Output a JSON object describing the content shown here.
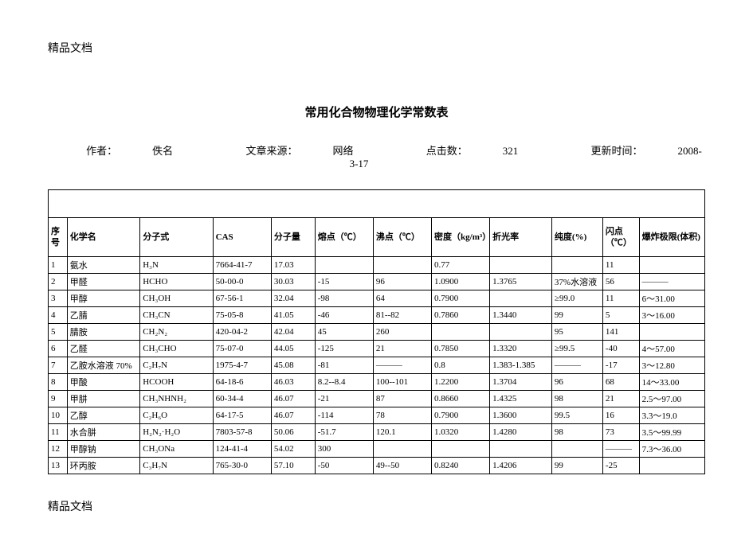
{
  "header_label": "精品文档",
  "footer_label": "精品文档",
  "title": "常用化合物物理化学常数表",
  "meta": {
    "author_label": "作者：",
    "author": "佚名",
    "source_label": "文章来源：",
    "source": "网络",
    "hits_label": "点击数：",
    "hits": "321",
    "updated_label": "更新时间：",
    "updated": "2008-3-17"
  },
  "columns": [
    "序号",
    "化学名",
    "分子式",
    "CAS",
    "分子量",
    "熔点（℃）",
    "沸点（℃）",
    "密度（kg/m³）",
    "折光率",
    "纯度(%)",
    "闪点（℃）",
    "爆炸极限(体积)"
  ],
  "rows": [
    [
      "1",
      "氨水",
      "H₃N",
      "7664-41-7",
      "17.03",
      "",
      "",
      "0.77",
      "",
      "",
      "11",
      ""
    ],
    [
      "2",
      "甲醛",
      "HCHO",
      "50-00-0",
      "30.03",
      "-15",
      "96",
      "1.0900",
      "1.3765",
      "37%水溶液",
      "56",
      "———"
    ],
    [
      "3",
      "甲醇",
      "CH₃OH",
      "67-56-1",
      "32.04",
      "-98",
      "64",
      "0.7900",
      "",
      "≥99.0",
      "11",
      "6～31.00"
    ],
    [
      "4",
      "乙腈",
      "CH₃CN",
      "75-05-8",
      "41.05",
      "-46",
      "81--82",
      "0.7860",
      "1.3440",
      "99",
      "5",
      "3～16.00"
    ],
    [
      "5",
      "腈胺",
      "CH₂N₂",
      "420-04-2",
      "42.04",
      "45",
      "260",
      "",
      "",
      "95",
      "141",
      ""
    ],
    [
      "6",
      "乙醛",
      "CH₃CHO",
      "75-07-0",
      "44.05",
      "-125",
      "21",
      "0.7850",
      "1.3320",
      "≥99.5",
      "-40",
      "4～57.00"
    ],
    [
      "7",
      "乙胺水溶液 70%",
      "C₂H₇N",
      "1975-4-7",
      "45.08",
      "-81",
      "———",
      "0.8",
      "1.383-1.385",
      "———",
      "-17",
      "3～12.80"
    ],
    [
      "8",
      "甲酸",
      "HCOOH",
      "64-18-6",
      "46.03",
      "8.2--8.4",
      "100--101",
      "1.2200",
      "1.3704",
      "96",
      "68",
      "14～33.00"
    ],
    [
      "9",
      "甲肼",
      "CH₃NHNH₂",
      "60-34-4",
      "46.07",
      "-21",
      "87",
      "0.8660",
      "1.4325",
      "98",
      "21",
      "2.5～97.00"
    ],
    [
      "10",
      "乙醇",
      "C₂H₆O",
      "64-17-5",
      "46.07",
      "-114",
      "78",
      "0.7900",
      "1.3600",
      "99.5",
      "16",
      "3.3～19.0"
    ],
    [
      "11",
      "水合肼",
      "H₂N₂·H₂O",
      "7803-57-8",
      "50.06",
      "-51.7",
      "120.1",
      "1.0320",
      "1.4280",
      "98",
      "73",
      "3.5～99.99"
    ],
    [
      "12",
      "甲醇钠",
      "CH₃ONa",
      "124-41-4",
      "54.02",
      "300",
      "",
      "",
      "",
      "",
      "———",
      "7.3～36.00"
    ],
    [
      "13",
      "环丙胺",
      "C₃H₇N",
      "765-30-0",
      "57.10",
      "-50",
      "49--50",
      "0.8240",
      "1.4206",
      "99",
      "-25",
      ""
    ]
  ]
}
